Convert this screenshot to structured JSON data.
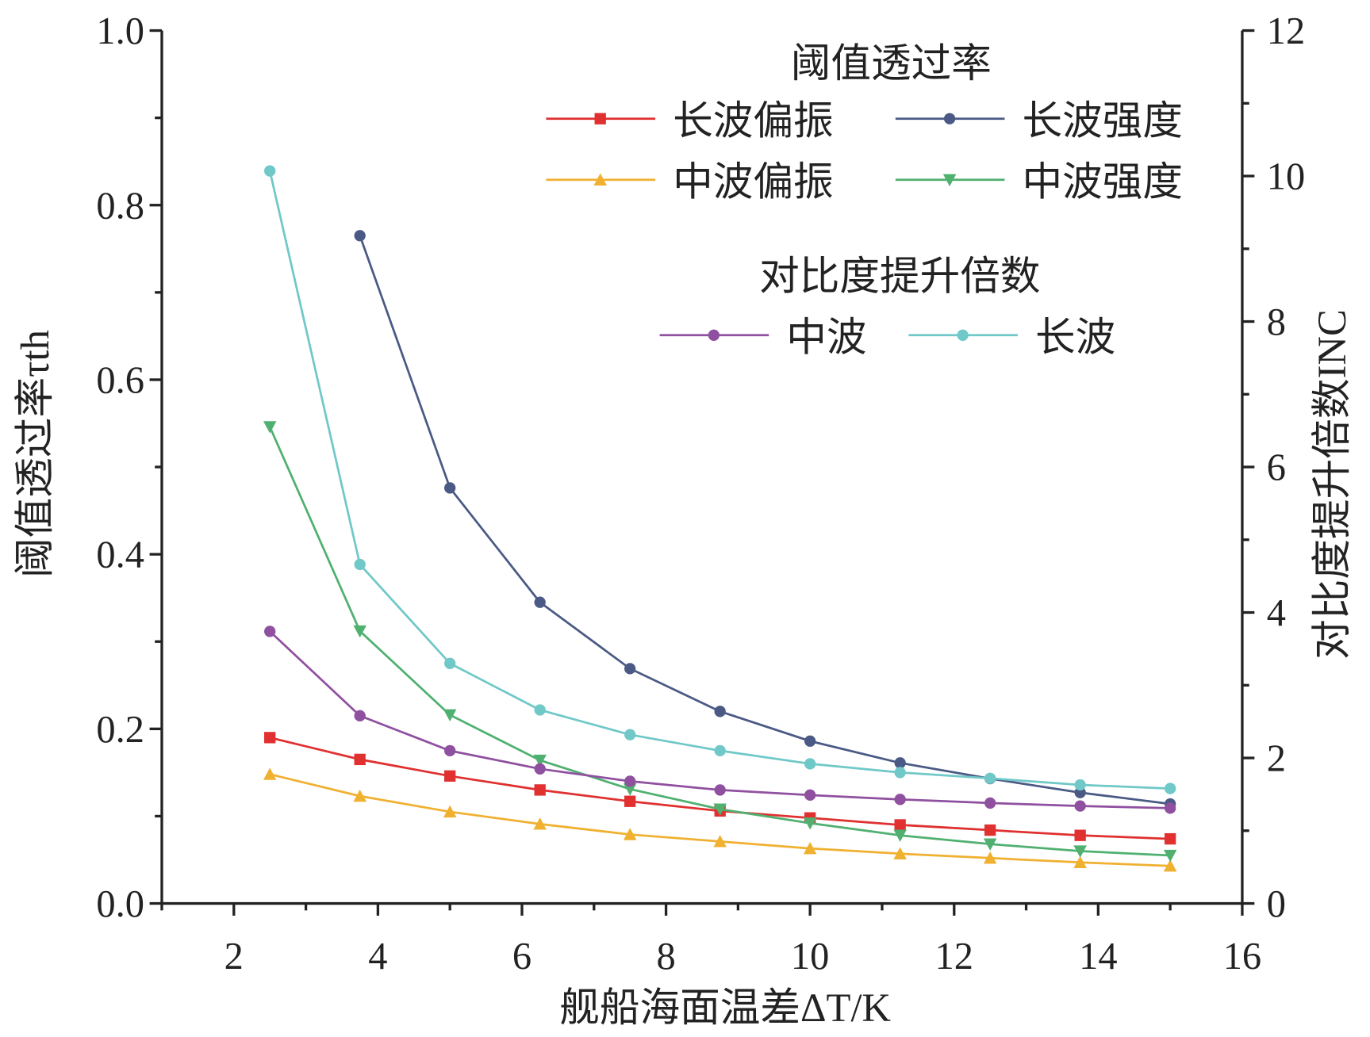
{
  "chart_data": {
    "type": "line",
    "xlabel": "舰船海面温差ΔT/K",
    "ylabel_left": "阈值透过率τth",
    "ylabel_right": "对比度提升倍数INC",
    "xlim": [
      1,
      16
    ],
    "ylim_left": [
      0,
      1.0
    ],
    "ylim_right": [
      0,
      12
    ],
    "xticks": [
      "2",
      "4",
      "6",
      "8",
      "10",
      "12",
      "14",
      "16"
    ],
    "yticks_left": [
      "0.0",
      "0.2",
      "0.4",
      "0.6",
      "0.8",
      "1.0"
    ],
    "yticks_right": [
      "0",
      "2",
      "4",
      "6",
      "8",
      "10",
      "12"
    ],
    "legend_title_1": "阈值透过率",
    "legend_title_2": "对比度提升倍数",
    "grid": false,
    "legend_placement": "top-right",
    "series": [
      {
        "name": "长波偏振",
        "axis": "left",
        "color": "#e03030",
        "marker": "square",
        "x": [
          2.5,
          3.75,
          5,
          6.25,
          7.5,
          8.75,
          10,
          11.25,
          12.5,
          13.75,
          15
        ],
        "values": [
          0.19,
          0.165,
          0.146,
          0.13,
          0.117,
          0.106,
          0.098,
          0.09,
          0.084,
          0.078,
          0.074
        ]
      },
      {
        "name": "长波强度",
        "axis": "left",
        "color": "#4a5a85",
        "marker": "circle",
        "x": [
          3.75,
          5,
          6.25,
          7.5,
          8.75,
          10,
          11.25,
          12.5,
          13.75,
          15
        ],
        "values": [
          0.765,
          0.476,
          0.345,
          0.269,
          0.22,
          0.186,
          0.161,
          0.143,
          0.127,
          0.114
        ]
      },
      {
        "name": "中波偏振",
        "axis": "left",
        "color": "#f0b030",
        "marker": "triangle-up",
        "x": [
          2.5,
          3.75,
          5,
          6.25,
          7.5,
          8.75,
          10,
          11.25,
          12.5,
          13.75,
          15
        ],
        "values": [
          0.148,
          0.123,
          0.105,
          0.091,
          0.079,
          0.071,
          0.063,
          0.057,
          0.052,
          0.047,
          0.043
        ]
      },
      {
        "name": "中波强度",
        "axis": "left",
        "color": "#50b070",
        "marker": "triangle-down",
        "x": [
          2.5,
          3.75,
          5,
          6.25,
          7.5,
          8.75,
          10,
          11.25,
          12.5,
          13.75,
          15
        ],
        "values": [
          0.546,
          0.312,
          0.216,
          0.164,
          0.131,
          0.108,
          0.092,
          0.078,
          0.068,
          0.06,
          0.055
        ]
      },
      {
        "name": "中波",
        "axis": "right",
        "color": "#9050a0",
        "marker": "circle",
        "x": [
          2.5,
          3.75,
          5,
          6.25,
          7.5,
          8.75,
          10,
          11.25,
          12.5,
          13.75,
          15
        ],
        "values": [
          3.74,
          2.58,
          2.1,
          1.85,
          1.68,
          1.56,
          1.49,
          1.43,
          1.38,
          1.34,
          1.31
        ]
      },
      {
        "name": "长波",
        "axis": "right",
        "color": "#70c8c8",
        "marker": "circle",
        "x": [
          2.5,
          3.75,
          5,
          6.25,
          7.5,
          8.75,
          10,
          11.25,
          12.5,
          13.75,
          15
        ],
        "values": [
          10.07,
          4.66,
          3.3,
          2.66,
          2.32,
          2.1,
          1.92,
          1.8,
          1.72,
          1.63,
          1.58
        ]
      }
    ]
  }
}
